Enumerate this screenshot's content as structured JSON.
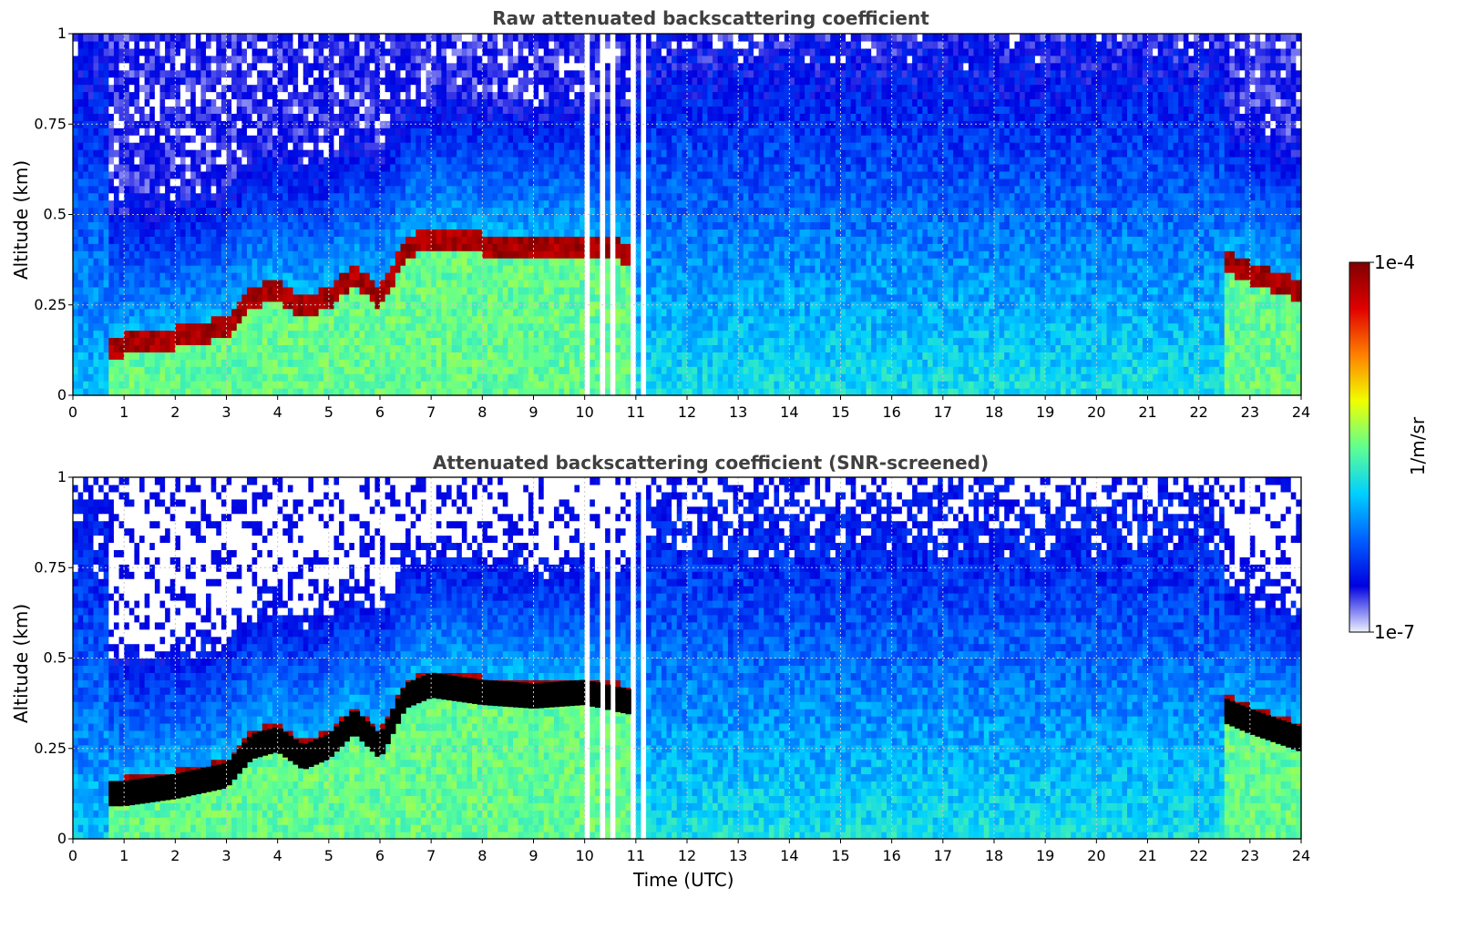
{
  "colorbar": {
    "label": "1/m/sr",
    "max_label": "1e-4",
    "min_label": "1e-7",
    "scale": "log",
    "colormap": "jet-like (white → blue → cyan → green → yellow → red → dark red)",
    "colors": [
      "#eef0ff",
      "#0000e0",
      "#0060ff",
      "#00d0ff",
      "#60ff90",
      "#f0ff00",
      "#ff8000",
      "#e00000",
      "#800000"
    ]
  },
  "xaxis": {
    "label": "Time (UTC)",
    "ticks": [
      "0",
      "1",
      "2",
      "3",
      "4",
      "5",
      "6",
      "7",
      "8",
      "9",
      "10",
      "11",
      "12",
      "13",
      "14",
      "15",
      "16",
      "17",
      "18",
      "19",
      "20",
      "21",
      "22",
      "23",
      "24"
    ]
  },
  "chart_data": [
    {
      "type": "heatmap",
      "title": "Raw attenuated backscattering coefficient",
      "xlabel": "",
      "ylabel": "Altitude (km)",
      "xlim": [
        0,
        24
      ],
      "ylim": [
        0,
        1
      ],
      "yticks": [
        "0",
        "0.25",
        "0.5",
        "0.75",
        "1"
      ],
      "grid": true,
      "colorbar_range": [
        1e-07,
        0.0001
      ],
      "aerosol_layer_top_km": {
        "x": [
          0.7,
          1,
          2,
          3,
          3.5,
          4,
          4.5,
          5,
          5.5,
          6,
          6.5,
          7,
          8,
          9,
          10,
          11,
          22.5,
          23,
          24
        ],
        "y": [
          0.15,
          0.15,
          0.17,
          0.2,
          0.28,
          0.3,
          0.25,
          0.28,
          0.35,
          0.28,
          0.42,
          0.45,
          0.43,
          0.42,
          0.43,
          0.4,
          0.38,
          0.35,
          0.3
        ]
      },
      "data_gaps_utc": [
        10.1,
        10.3,
        10.6,
        10.9,
        11.2
      ]
    },
    {
      "type": "heatmap",
      "title": "Attenuated backscattering coefficient (SNR-screened)",
      "xlabel": "Time (UTC)",
      "ylabel": "Altitude (km)",
      "xlim": [
        0,
        24
      ],
      "ylim": [
        0,
        1
      ],
      "yticks": [
        "0",
        "0.25",
        "0.5",
        "0.75",
        "1"
      ],
      "grid": true,
      "colorbar_range": [
        1e-07,
        0.0001
      ],
      "aerosol_layer_top_km": {
        "x": [
          0.7,
          1,
          2,
          3,
          3.5,
          4,
          4.5,
          5,
          5.5,
          6,
          6.5,
          7,
          8,
          9,
          10,
          11,
          22.5,
          23,
          24
        ],
        "y": [
          0.15,
          0.15,
          0.17,
          0.2,
          0.28,
          0.3,
          0.25,
          0.28,
          0.35,
          0.28,
          0.42,
          0.45,
          0.43,
          0.42,
          0.43,
          0.4,
          0.38,
          0.35,
          0.3
        ]
      },
      "data_gaps_utc": [
        10.1,
        10.3,
        10.6,
        10.9,
        11.2
      ]
    }
  ]
}
